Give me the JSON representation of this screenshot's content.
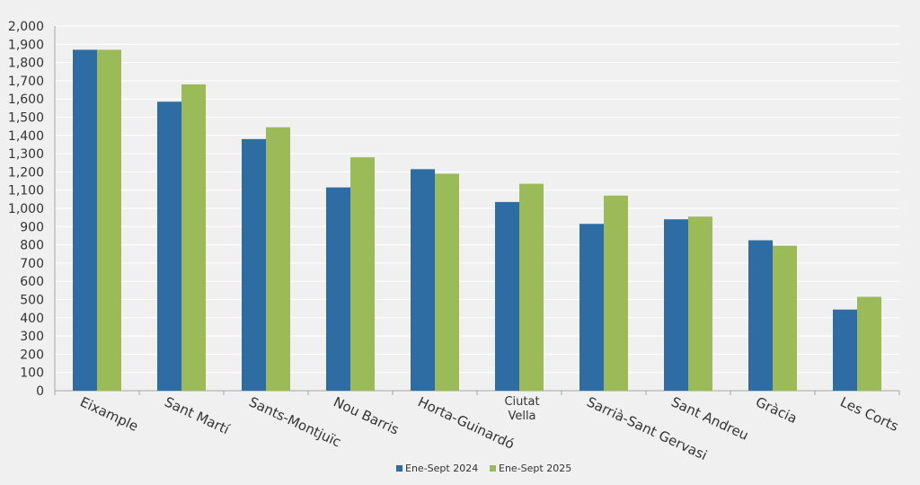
{
  "chart_data": {
    "type": "bar",
    "title": "",
    "xlabel": "",
    "ylabel": "",
    "categories": [
      "Eixample",
      "Sant Martí",
      "Sants-Montjuïc",
      "Nou Barris",
      "Horta-Guinardó",
      "Ciutat Vella",
      "Sarrià-Sant Gervasi",
      "Sant Andreu",
      "Gràcia",
      "Les Corts"
    ],
    "series": [
      {
        "name": "Ene-Sept 2024",
        "color": "#2e6da4",
        "values": [
          1870,
          1585,
          1380,
          1115,
          1215,
          1035,
          915,
          940,
          825,
          445
        ]
      },
      {
        "name": "Ene-Sept 2025",
        "color": "#9bbb59",
        "values": [
          1870,
          1680,
          1445,
          1280,
          1190,
          1135,
          1070,
          955,
          795,
          515
        ]
      }
    ],
    "ylim": [
      0,
      2000
    ],
    "yticks": [
      "0",
      "100",
      "200",
      "300",
      "400",
      "500",
      "600",
      "700",
      "800",
      "900",
      "1,000",
      "1,100",
      "1,200",
      "1,300",
      "1,400",
      "1,500",
      "1,600",
      "1,700",
      "1,800",
      "1,900",
      "2,000"
    ],
    "grid": true,
    "legend_position": "bottom-center"
  }
}
